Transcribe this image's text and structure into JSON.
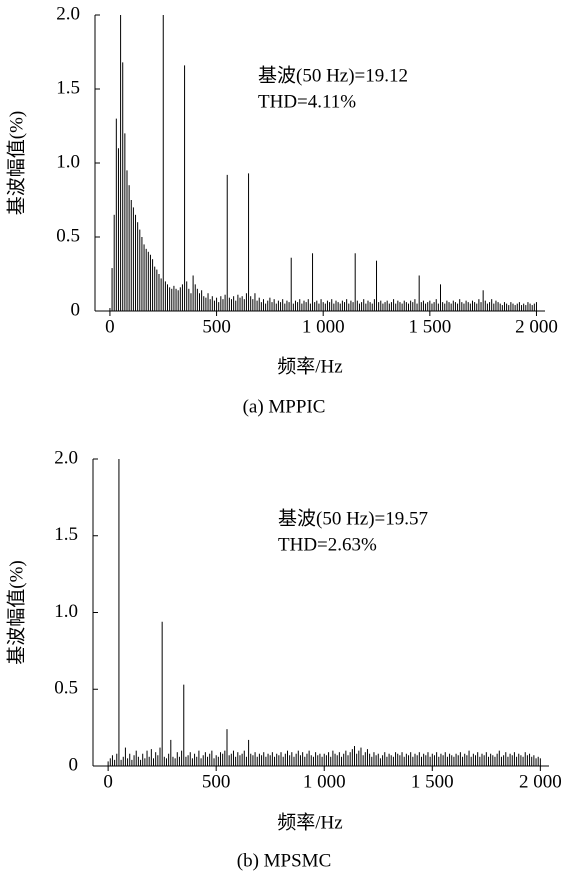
{
  "chart_data": [
    {
      "type": "bar",
      "caption": "(a) MPPIC",
      "xlabel": "频率/Hz",
      "ylabel": "基波幅值(%)",
      "annotations": [
        "基波(50 Hz)=19.12",
        "THD=4.11%"
      ],
      "color": "#000000",
      "xlim": [
        -70,
        2040
      ],
      "ylim": [
        0,
        2
      ],
      "xticks": [
        0,
        500,
        {
          "value": 1000,
          "label": "1 000"
        },
        {
          "value": 1500,
          "label": "1 500"
        },
        {
          "value": 2000,
          "label": "2 000"
        }
      ],
      "yticks": [
        0,
        0.5,
        {
          "value": 1,
          "label": "1.0"
        },
        1.5,
        {
          "value": 2,
          "label": "2.0"
        }
      ],
      "x": [
        0,
        10,
        20,
        30,
        40,
        50,
        60,
        70,
        80,
        90,
        100,
        110,
        120,
        130,
        140,
        150,
        160,
        170,
        180,
        190,
        200,
        210,
        220,
        230,
        240,
        250,
        260,
        270,
        280,
        290,
        300,
        310,
        320,
        330,
        340,
        350,
        360,
        370,
        380,
        390,
        400,
        410,
        420,
        430,
        440,
        450,
        460,
        470,
        480,
        490,
        500,
        510,
        520,
        530,
        540,
        550,
        560,
        570,
        580,
        590,
        600,
        610,
        620,
        630,
        640,
        650,
        660,
        670,
        680,
        690,
        700,
        710,
        720,
        730,
        740,
        750,
        760,
        770,
        780,
        790,
        800,
        810,
        820,
        830,
        840,
        850,
        860,
        870,
        880,
        890,
        900,
        910,
        920,
        930,
        940,
        950,
        960,
        970,
        980,
        990,
        1000,
        1010,
        1020,
        1030,
        1040,
        1050,
        1060,
        1070,
        1080,
        1090,
        1100,
        1110,
        1120,
        1130,
        1140,
        1150,
        1160,
        1170,
        1180,
        1190,
        1200,
        1210,
        1220,
        1230,
        1240,
        1250,
        1260,
        1270,
        1280,
        1290,
        1300,
        1310,
        1320,
        1330,
        1340,
        1350,
        1360,
        1370,
        1380,
        1390,
        1400,
        1410,
        1420,
        1430,
        1440,
        1450,
        1460,
        1470,
        1480,
        1490,
        1500,
        1510,
        1520,
        1530,
        1540,
        1550,
        1560,
        1570,
        1580,
        1590,
        1600,
        1610,
        1620,
        1630,
        1640,
        1650,
        1660,
        1670,
        1680,
        1690,
        1700,
        1710,
        1720,
        1730,
        1740,
        1750,
        1760,
        1770,
        1780,
        1790,
        1800,
        1810,
        1820,
        1830,
        1840,
        1850,
        1860,
        1870,
        1880,
        1890,
        1900,
        1910,
        1920,
        1930,
        1940,
        1950,
        1960,
        1970,
        1980,
        1990,
        2000
      ],
      "values": [
        0.02,
        0.29,
        0.65,
        1.3,
        1.1,
        2.0,
        1.68,
        1.2,
        0.95,
        0.85,
        0.75,
        0.7,
        0.65,
        0.6,
        0.55,
        0.5,
        0.45,
        0.42,
        0.4,
        0.38,
        0.35,
        0.3,
        0.28,
        0.25,
        0.22,
        2.0,
        0.2,
        0.18,
        0.16,
        0.15,
        0.17,
        0.15,
        0.14,
        0.16,
        0.18,
        1.66,
        0.2,
        0.15,
        0.12,
        0.24,
        0.18,
        0.15,
        0.12,
        0.14,
        0.1,
        0.09,
        0.12,
        0.08,
        0.1,
        0.07,
        0.09,
        0.06,
        0.1,
        0.08,
        0.11,
        0.92,
        0.09,
        0.08,
        0.1,
        0.07,
        0.11,
        0.09,
        0.1,
        0.08,
        0.12,
        0.93,
        0.1,
        0.08,
        0.12,
        0.07,
        0.09,
        0.06,
        0.08,
        0.05,
        0.07,
        0.09,
        0.06,
        0.08,
        0.05,
        0.07,
        0.06,
        0.08,
        0.05,
        0.07,
        0.06,
        0.36,
        0.05,
        0.07,
        0.06,
        0.08,
        0.05,
        0.07,
        0.06,
        0.08,
        0.05,
        0.39,
        0.06,
        0.07,
        0.05,
        0.08,
        0.06,
        0.05,
        0.07,
        0.06,
        0.08,
        0.05,
        0.07,
        0.06,
        0.05,
        0.07,
        0.06,
        0.08,
        0.05,
        0.07,
        0.06,
        0.39,
        0.07,
        0.05,
        0.06,
        0.08,
        0.05,
        0.07,
        0.06,
        0.05,
        0.08,
        0.34,
        0.06,
        0.07,
        0.05,
        0.06,
        0.07,
        0.05,
        0.06,
        0.08,
        0.05,
        0.07,
        0.06,
        0.05,
        0.07,
        0.06,
        0.05,
        0.07,
        0.06,
        0.08,
        0.05,
        0.24,
        0.06,
        0.07,
        0.05,
        0.06,
        0.07,
        0.05,
        0.06,
        0.08,
        0.05,
        0.18,
        0.06,
        0.05,
        0.07,
        0.06,
        0.05,
        0.07,
        0.06,
        0.05,
        0.08,
        0.06,
        0.05,
        0.07,
        0.06,
        0.05,
        0.07,
        0.06,
        0.05,
        0.08,
        0.06,
        0.14,
        0.07,
        0.05,
        0.06,
        0.08,
        0.05,
        0.07,
        0.06,
        0.05,
        0.04,
        0.06,
        0.05,
        0.04,
        0.06,
        0.05,
        0.04,
        0.05,
        0.06,
        0.04,
        0.05,
        0.04,
        0.06,
        0.05,
        0.04,
        0.05,
        0.06
      ]
    },
    {
      "type": "bar",
      "caption": "(b) MPSMC",
      "xlabel": "频率/Hz",
      "ylabel": "基波幅值(%)",
      "annotations": [
        "基波(50 Hz)=19.57",
        "THD=2.63%"
      ],
      "color": "#000000",
      "xlim": [
        -70,
        2040
      ],
      "ylim": [
        0,
        2
      ],
      "xticks": [
        0,
        500,
        {
          "value": 1000,
          "label": "1 000"
        },
        {
          "value": 1500,
          "label": "1 500"
        },
        {
          "value": 2000,
          "label": "2 000"
        }
      ],
      "yticks": [
        0,
        0.5,
        {
          "value": 1,
          "label": "1.0"
        },
        1.5,
        {
          "value": 2,
          "label": "2.0"
        }
      ],
      "x": [
        0,
        10,
        20,
        30,
        40,
        50,
        60,
        70,
        80,
        90,
        100,
        110,
        120,
        130,
        140,
        150,
        160,
        170,
        180,
        190,
        200,
        210,
        220,
        230,
        240,
        250,
        260,
        270,
        280,
        290,
        300,
        310,
        320,
        330,
        340,
        350,
        360,
        370,
        380,
        390,
        400,
        410,
        420,
        430,
        440,
        450,
        460,
        470,
        480,
        490,
        500,
        510,
        520,
        530,
        540,
        550,
        560,
        570,
        580,
        590,
        600,
        610,
        620,
        630,
        640,
        650,
        660,
        670,
        680,
        690,
        700,
        710,
        720,
        730,
        740,
        750,
        760,
        770,
        780,
        790,
        800,
        810,
        820,
        830,
        840,
        850,
        860,
        870,
        880,
        890,
        900,
        910,
        920,
        930,
        940,
        950,
        960,
        970,
        980,
        990,
        1000,
        1010,
        1020,
        1030,
        1040,
        1050,
        1060,
        1070,
        1080,
        1090,
        1100,
        1110,
        1120,
        1130,
        1140,
        1150,
        1160,
        1170,
        1180,
        1190,
        1200,
        1210,
        1220,
        1230,
        1240,
        1250,
        1260,
        1270,
        1280,
        1290,
        1300,
        1310,
        1320,
        1330,
        1340,
        1350,
        1360,
        1370,
        1380,
        1390,
        1400,
        1410,
        1420,
        1430,
        1440,
        1450,
        1460,
        1470,
        1480,
        1490,
        1500,
        1510,
        1520,
        1530,
        1540,
        1550,
        1560,
        1570,
        1580,
        1590,
        1600,
        1610,
        1620,
        1630,
        1640,
        1650,
        1660,
        1670,
        1680,
        1690,
        1700,
        1710,
        1720,
        1730,
        1740,
        1750,
        1760,
        1770,
        1780,
        1790,
        1800,
        1810,
        1820,
        1830,
        1840,
        1850,
        1860,
        1870,
        1880,
        1890,
        1900,
        1910,
        1920,
        1930,
        1940,
        1950,
        1960,
        1970,
        1980,
        1990,
        2000
      ],
      "values": [
        0.03,
        0.05,
        0.07,
        0.04,
        0.08,
        2.0,
        0.04,
        0.06,
        0.12,
        0.05,
        0.08,
        0.04,
        0.07,
        0.1,
        0.06,
        0.04,
        0.08,
        0.05,
        0.1,
        0.06,
        0.11,
        0.05,
        0.09,
        0.07,
        0.12,
        0.94,
        0.06,
        0.05,
        0.08,
        0.17,
        0.06,
        0.05,
        0.09,
        0.06,
        0.1,
        0.53,
        0.06,
        0.07,
        0.09,
        0.05,
        0.08,
        0.06,
        0.1,
        0.05,
        0.07,
        0.09,
        0.06,
        0.08,
        0.1,
        0.05,
        0.07,
        0.06,
        0.09,
        0.08,
        0.1,
        0.24,
        0.07,
        0.08,
        0.1,
        0.06,
        0.09,
        0.07,
        0.08,
        0.1,
        0.06,
        0.17,
        0.08,
        0.07,
        0.09,
        0.06,
        0.08,
        0.07,
        0.09,
        0.06,
        0.08,
        0.07,
        0.09,
        0.06,
        0.08,
        0.07,
        0.09,
        0.06,
        0.08,
        0.1,
        0.07,
        0.09,
        0.06,
        0.08,
        0.1,
        0.07,
        0.09,
        0.06,
        0.08,
        0.1,
        0.07,
        0.06,
        0.09,
        0.07,
        0.08,
        0.06,
        0.08,
        0.07,
        0.09,
        0.06,
        0.1,
        0.08,
        0.07,
        0.09,
        0.06,
        0.08,
        0.1,
        0.07,
        0.09,
        0.11,
        0.13,
        0.08,
        0.1,
        0.12,
        0.07,
        0.09,
        0.11,
        0.08,
        0.06,
        0.09,
        0.07,
        0.08,
        0.05,
        0.07,
        0.09,
        0.06,
        0.08,
        0.07,
        0.06,
        0.09,
        0.08,
        0.07,
        0.09,
        0.06,
        0.08,
        0.07,
        0.09,
        0.06,
        0.08,
        0.07,
        0.09,
        0.06,
        0.08,
        0.07,
        0.09,
        0.06,
        0.08,
        0.07,
        0.09,
        0.06,
        0.08,
        0.07,
        0.09,
        0.06,
        0.08,
        0.07,
        0.06,
        0.08,
        0.07,
        0.09,
        0.06,
        0.08,
        0.07,
        0.1,
        0.06,
        0.08,
        0.07,
        0.09,
        0.06,
        0.08,
        0.07,
        0.09,
        0.06,
        0.08,
        0.07,
        0.06,
        0.08,
        0.1,
        0.06,
        0.07,
        0.09,
        0.06,
        0.08,
        0.07,
        0.09,
        0.06,
        0.08,
        0.07,
        0.06,
        0.09,
        0.07,
        0.08,
        0.06,
        0.07,
        0.05,
        0.06,
        0.05
      ]
    }
  ]
}
